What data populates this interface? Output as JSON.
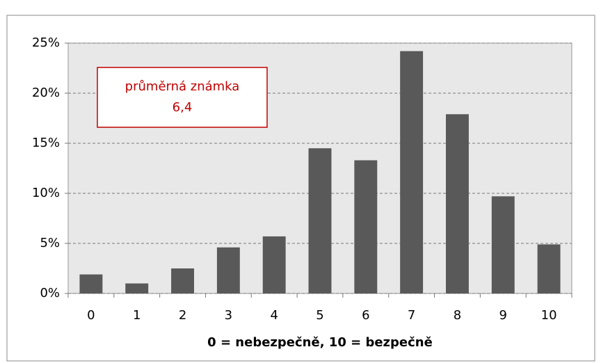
{
  "chart_data": {
    "type": "bar",
    "categories": [
      "0",
      "1",
      "2",
      "3",
      "4",
      "5",
      "6",
      "7",
      "8",
      "9",
      "10"
    ],
    "values": [
      1.9,
      1.0,
      2.5,
      4.6,
      5.7,
      14.5,
      13.3,
      24.2,
      17.9,
      9.7,
      4.9
    ],
    "color": "#595959",
    "ylim": [
      0,
      25
    ],
    "yticks": [
      {
        "value": 0,
        "label": "0%"
      },
      {
        "value": 5,
        "label": "5%"
      },
      {
        "value": 10,
        "label": "10%"
      },
      {
        "value": 15,
        "label": "15%"
      },
      {
        "value": 20,
        "label": "20%"
      },
      {
        "value": 25,
        "label": "25%"
      }
    ],
    "grid": true,
    "x_label": "0 = nebezpečně,  10 = bezpečně",
    "annotation": [
      "průměrná známka",
      "6,4"
    ]
  }
}
